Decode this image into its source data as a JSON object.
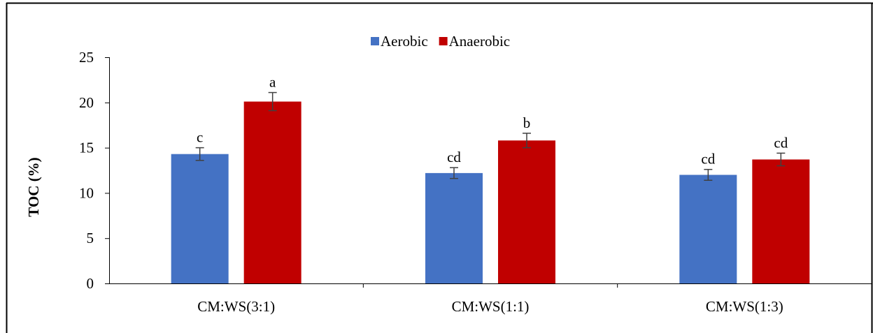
{
  "chart_data": {
    "type": "bar",
    "title": "",
    "xlabel": "",
    "ylabel": "TOC (%)",
    "ylim": [
      0,
      25
    ],
    "yticks": [
      0,
      5,
      10,
      15,
      20,
      25
    ],
    "grid": false,
    "legend_position": "top-center",
    "categories": [
      "CM:WS(3:1)",
      "CM:WS(1:1)",
      "CM:WS(1:3)"
    ],
    "series": [
      {
        "name": "Aerobic",
        "color": "#4472C4",
        "values": [
          14.3,
          12.2,
          12.0
        ],
        "errors": [
          0.7,
          0.6,
          0.6
        ],
        "labels": [
          "c",
          "cd",
          "cd"
        ]
      },
      {
        "name": "Anaerobic",
        "color": "#C00000",
        "values": [
          20.1,
          15.8,
          13.7
        ],
        "errors": [
          1.0,
          0.8,
          0.7
        ],
        "labels": [
          "a",
          "b",
          "cd"
        ]
      }
    ]
  }
}
